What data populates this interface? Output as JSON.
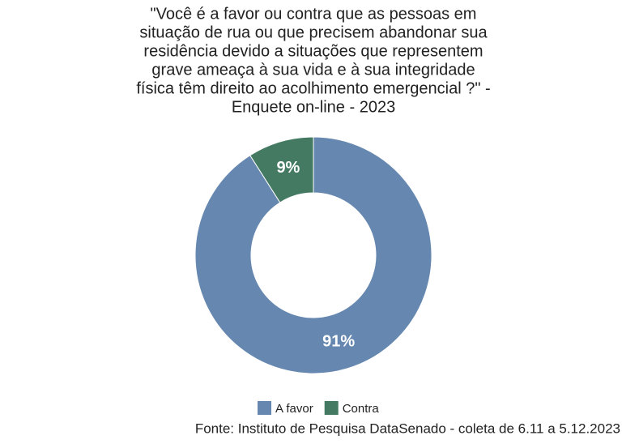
{
  "chart_data": {
    "type": "donut",
    "title": [
      "\"Você é a favor ou contra que as pessoas em",
      "situação de rua ou que precisem abandonar sua",
      "residência devido a situações que representem",
      "grave ameaça à sua vida e à sua integridade",
      "física têm direito ao acolhimento emergencial ?\" -",
      "Enquete on-line - 2023"
    ],
    "categories": [
      "A favor",
      "Contra"
    ],
    "values": [
      91,
      9
    ],
    "value_labels": [
      "91%",
      "9%"
    ],
    "colors": [
      "#6688b0",
      "#457a62"
    ],
    "legend": "bottom",
    "caption": "Fonte: Instituto de Pesquisa DataSenado - coleta de 6.11 a 5.12.2023"
  }
}
